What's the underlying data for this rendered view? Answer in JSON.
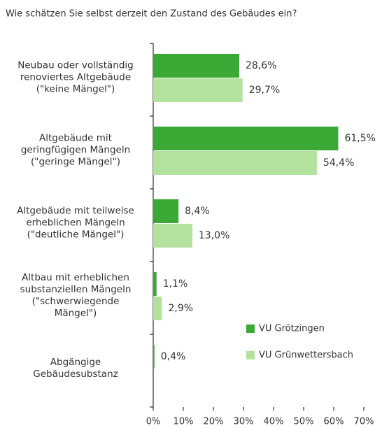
{
  "chart_data": {
    "type": "bar",
    "orientation": "horizontal",
    "title": "Wie schätzen Sie selbst derzeit den Zustand des Gebäudes ein?",
    "categories": [
      "Neubau oder vollständig\nrenoviertes Altgebäude\n(\"keine Mängel\")",
      "Altgebäude mit\ngeringfügigen Mängeln\n(\"geringe Mängel\")",
      "Altgebäude mit teilweise\nerheblichen Mängeln\n(\"deutliche Mängel\")",
      "Altbau mit erheblichen\nsubstanziellen Mängeln\n(\"schwerwiegende\nMängel\")",
      "Abgängige\nGebäudesubstanz"
    ],
    "series": [
      {
        "name": "VU Grötzingen",
        "color": "#3aa935",
        "values": [
          28.6,
          61.5,
          8.4,
          1.1,
          0.4
        ],
        "value_labels": [
          "28,6%",
          "61,5%",
          "8,4%",
          "1,1%",
          "0,4%"
        ]
      },
      {
        "name": "VU Grünwettersbach",
        "color": "#b3e29e",
        "values": [
          29.7,
          54.4,
          13.0,
          2.9,
          null
        ],
        "value_labels": [
          "29,7%",
          "54,4%",
          "13,0%",
          "2,9%",
          null
        ]
      }
    ],
    "xlim": [
      0,
      70
    ],
    "xticks": [
      {
        "value": 0,
        "label": "0%"
      },
      {
        "value": 10,
        "label": "10%"
      },
      {
        "value": 20,
        "label": "20%"
      },
      {
        "value": 30,
        "label": "30%"
      },
      {
        "value": 40,
        "label": "40%"
      },
      {
        "value": 50,
        "label": "50%"
      },
      {
        "value": 60,
        "label": "60%"
      },
      {
        "value": 70,
        "label": "70%"
      }
    ]
  }
}
